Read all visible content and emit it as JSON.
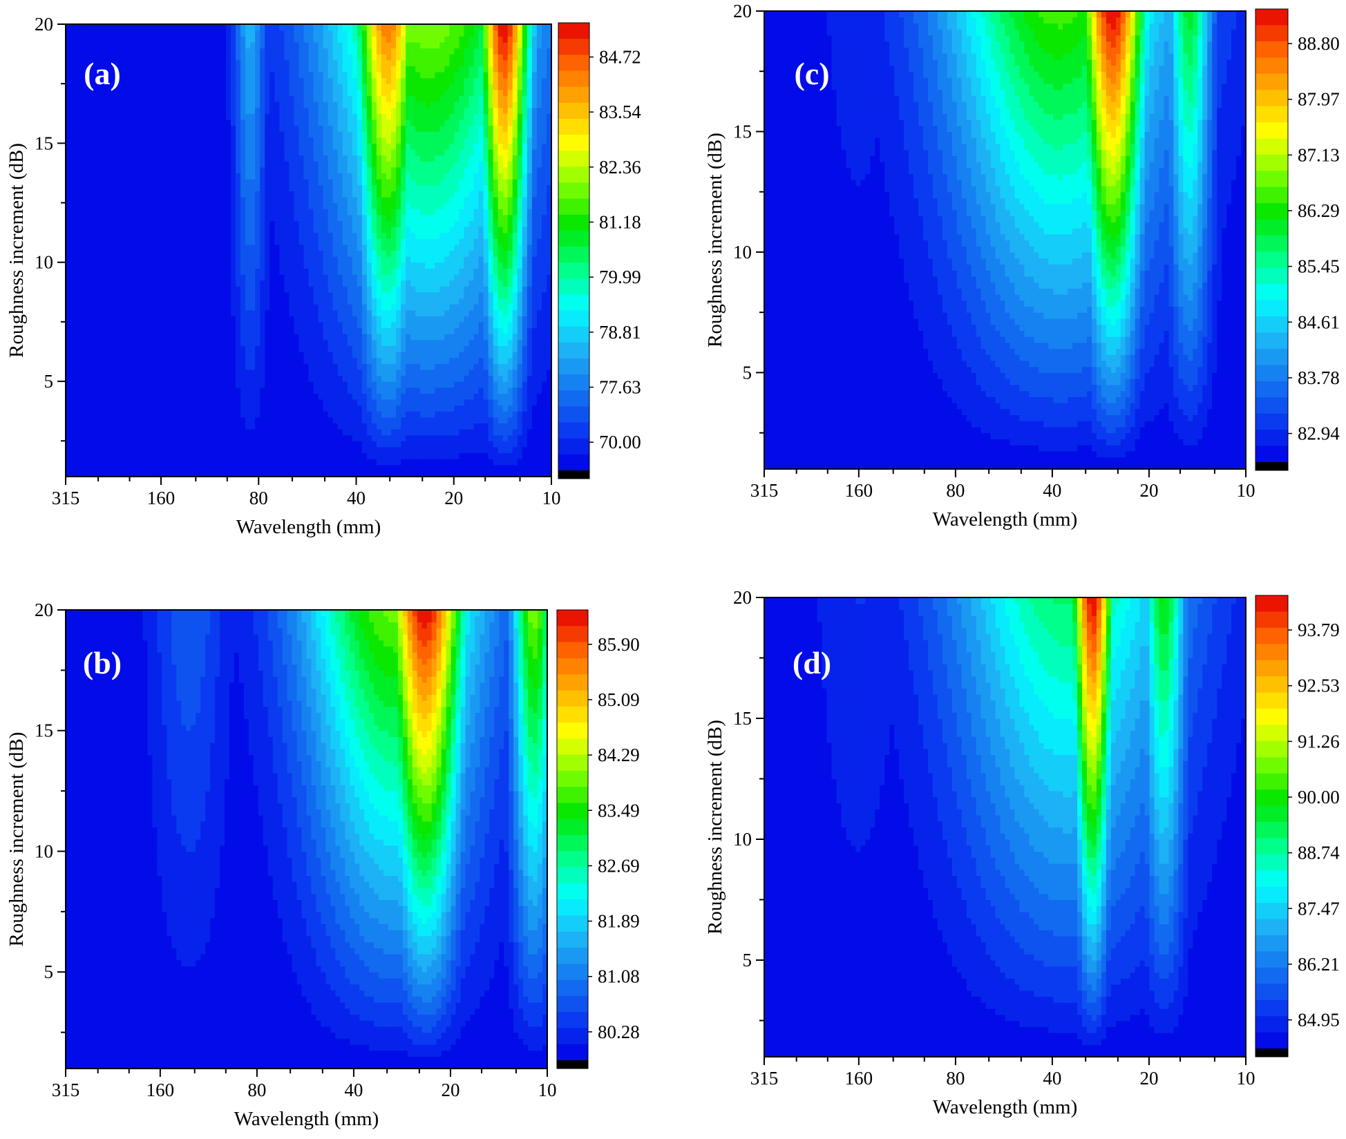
{
  "figure": {
    "background": "#ffffff",
    "colormap": [
      "#0000e6",
      "#0a3cf0",
      "#1478f0",
      "#1eb4f5",
      "#00ffff",
      "#00ff80",
      "#00e600",
      "#80ff00",
      "#ffff00",
      "#ffb400",
      "#ff6400",
      "#e60000"
    ],
    "underflow_color": "#000000"
  },
  "chart_data": [
    {
      "type": "heatmap",
      "panel_label": "(a)",
      "xlabel": "Wavelength (mm)",
      "ylabel": "Roughness increment (dB)",
      "x_axis_scale": "log",
      "x_tick_labels": [
        "315",
        "160",
        "80",
        "40",
        "20",
        "10"
      ],
      "x_tick_values": [
        315,
        160,
        80,
        40,
        20,
        10
      ],
      "ylim": [
        1,
        20
      ],
      "y_tick_labels": [
        "5",
        "10",
        "15",
        "20"
      ],
      "y_tick_values": [
        5,
        10,
        15,
        20
      ],
      "colorbar_labels": [
        "84.72",
        "83.54",
        "82.36",
        "81.18",
        "79.99",
        "78.81",
        "77.63",
        "70.00"
      ],
      "zlim": [
        69.0,
        85.9
      ],
      "wavelengths": [
        315,
        250,
        200,
        160,
        125,
        100,
        80,
        63,
        50,
        40,
        31.5,
        25,
        20,
        16,
        12.5,
        10
      ],
      "ridges": [
        {
          "wavelength": 14,
          "width": 0.085,
          "peak": 85.9,
          "zmax": 6
        },
        {
          "wavelength": 32,
          "width": 0.11,
          "peak": 84.0,
          "zmax": 7
        },
        {
          "wavelength": 24,
          "width": 0.34,
          "peak": 79.8,
          "zmax": 9
        },
        {
          "wavelength": 85,
          "width": 0.05,
          "peak": 73.5,
          "zmax": 20
        }
      ]
    },
    {
      "type": "heatmap",
      "panel_label": "(b)",
      "xlabel": "Wavelength (mm)",
      "ylabel": "Roughness increment (dB)",
      "x_axis_scale": "log",
      "x_tick_labels": [
        "315",
        "160",
        "80",
        "40",
        "20",
        "10"
      ],
      "x_tick_values": [
        315,
        160,
        80,
        40,
        20,
        10
      ],
      "ylim": [
        1,
        20
      ],
      "y_tick_labels": [
        "5",
        "10",
        "15",
        "20"
      ],
      "y_tick_values": [
        5,
        10,
        15,
        20
      ],
      "colorbar_labels": [
        "85.90",
        "85.09",
        "84.29",
        "83.49",
        "82.69",
        "81.89",
        "81.08",
        "80.28"
      ],
      "zlim": [
        79.5,
        86.6
      ],
      "wavelengths": [
        315,
        250,
        200,
        160,
        125,
        100,
        80,
        63,
        50,
        40,
        31.5,
        25,
        20,
        16,
        12.5,
        10
      ],
      "ridges": [
        {
          "wavelength": 24,
          "width": 0.13,
          "peak": 86.6,
          "zmax": 7
        },
        {
          "wavelength": 30,
          "width": 0.3,
          "peak": 83.9,
          "zmax": 8
        },
        {
          "wavelength": 11,
          "width": 0.07,
          "peak": 84.0,
          "zmax": 12
        },
        {
          "wavelength": 130,
          "width": 0.12,
          "peak": 80.5,
          "zmax": 20
        }
      ]
    },
    {
      "type": "heatmap",
      "panel_label": "(c)",
      "xlabel": "Wavelength (mm)",
      "ylabel": "Roughness increment (dB)",
      "x_axis_scale": "log",
      "x_tick_labels": [
        "315",
        "160",
        "80",
        "40",
        "20",
        "10"
      ],
      "x_tick_values": [
        315,
        160,
        80,
        40,
        20,
        10
      ],
      "ylim": [
        1,
        20
      ],
      "y_tick_labels": [
        "5",
        "10",
        "15",
        "20"
      ],
      "y_tick_values": [
        5,
        10,
        15,
        20
      ],
      "colorbar_labels": [
        "88.80",
        "87.97",
        "87.13",
        "86.29",
        "85.45",
        "84.61",
        "83.78",
        "82.94"
      ],
      "zlim": [
        82.2,
        89.5
      ],
      "wavelengths": [
        315,
        250,
        200,
        160,
        125,
        100,
        80,
        63,
        50,
        40,
        31.5,
        25,
        20,
        16,
        12.5,
        10
      ],
      "ridges": [
        {
          "wavelength": 26,
          "width": 0.11,
          "peak": 89.5,
          "zmax": 6
        },
        {
          "wavelength": 38,
          "width": 0.38,
          "peak": 86.5,
          "zmax": 8
        },
        {
          "wavelength": 15,
          "width": 0.07,
          "peak": 86.0,
          "zmax": 12
        },
        {
          "wavelength": 160,
          "width": 0.15,
          "peak": 82.6,
          "zmax": 20
        }
      ]
    },
    {
      "type": "heatmap",
      "panel_label": "(d)",
      "xlabel": "Wavelength (mm)",
      "ylabel": "Roughness increment (dB)",
      "x_axis_scale": "log",
      "x_tick_labels": [
        "315",
        "160",
        "80",
        "40",
        "20",
        "10"
      ],
      "x_tick_values": [
        315,
        160,
        80,
        40,
        20,
        10
      ],
      "ylim": [
        1,
        20
      ],
      "y_tick_labels": [
        "5",
        "10",
        "15",
        "20"
      ],
      "y_tick_values": [
        5,
        10,
        15,
        20
      ],
      "colorbar_labels": [
        "93.79",
        "92.53",
        "91.26",
        "90.00",
        "88.74",
        "87.47",
        "86.21",
        "84.95"
      ],
      "zlim": [
        84.0,
        95.0
      ],
      "wavelengths": [
        315,
        250,
        200,
        160,
        125,
        100,
        80,
        63,
        50,
        40,
        31.5,
        25,
        20,
        16,
        12.5,
        10
      ],
      "ridges": [
        {
          "wavelength": 30,
          "width": 0.07,
          "peak": 95.0,
          "zmax": 5
        },
        {
          "wavelength": 36,
          "width": 0.38,
          "peak": 89.2,
          "zmax": 9
        },
        {
          "wavelength": 18,
          "width": 0.07,
          "peak": 90.0,
          "zmax": 12
        },
        {
          "wavelength": 160,
          "width": 0.15,
          "peak": 84.8,
          "zmax": 20
        }
      ]
    }
  ]
}
